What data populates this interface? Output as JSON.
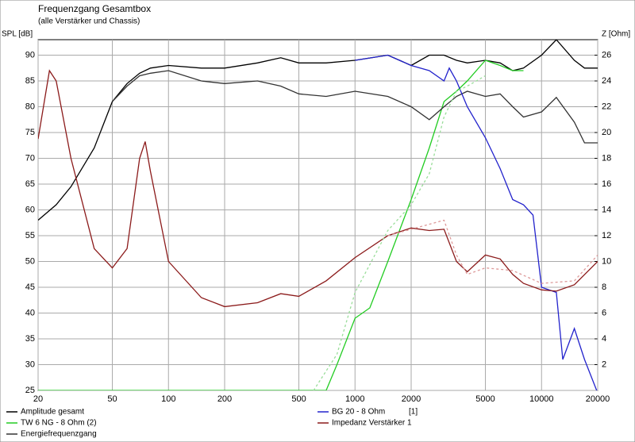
{
  "chart_data": {
    "type": "line",
    "title": "Frequenzgang Gesamtbox",
    "subtitle": "(alle Verstärker und Chassis)",
    "y_label": "SPL [dB]",
    "y2_label": "Z [Ohm]",
    "xscale": "log",
    "xlim": [
      20,
      20000
    ],
    "xticks": [
      20,
      50,
      100,
      200,
      500,
      1000,
      2000,
      5000,
      10000,
      20000
    ],
    "ylim": [
      25,
      93
    ],
    "yticks": [
      25,
      30,
      35,
      40,
      45,
      50,
      55,
      60,
      65,
      70,
      75,
      80,
      85,
      90
    ],
    "y2lim": [
      0,
      27.2
    ],
    "y2ticks": [
      2,
      4,
      6,
      8,
      10,
      12,
      14,
      16,
      18,
      20,
      22,
      24,
      26
    ],
    "grid": true,
    "series": [
      {
        "name": "Amplitude gesamt",
        "color": "#000000",
        "x": [
          20,
          25,
          30,
          40,
          50,
          60,
          70,
          80,
          100,
          150,
          200,
          300,
          400,
          500,
          700,
          1000,
          1500,
          2000,
          2500,
          3000,
          3500,
          4000,
          5000,
          6000,
          7000,
          8000,
          10000,
          12000,
          15000,
          17000,
          20000
        ],
        "values": [
          58,
          61,
          64.5,
          72,
          81,
          84.5,
          86.5,
          87.5,
          88,
          87.5,
          87.5,
          88.5,
          89.5,
          88.5,
          88.5,
          89,
          90,
          88,
          90,
          90,
          89,
          88.5,
          89,
          88.5,
          87,
          87.5,
          90,
          93,
          89,
          87.5,
          87.5
        ]
      },
      {
        "name": "TW 6 NG - 8 Ohm (2)",
        "color": "#22cc22",
        "x": [
          20,
          700,
          800,
          1000,
          1200,
          1500,
          2000,
          2500,
          3000,
          3500,
          4000,
          5000,
          6000,
          7000,
          8000
        ],
        "values": [
          25,
          25,
          30,
          39,
          41,
          50,
          62,
          72,
          81,
          83,
          85,
          89,
          88,
          87,
          87
        ]
      },
      {
        "name": "Energiefrequenzgang",
        "color": "#333333",
        "x": [
          50,
          60,
          70,
          80,
          100,
          150,
          200,
          300,
          400,
          500,
          700,
          1000,
          1500,
          2000,
          2500,
          3000,
          3500,
          4000,
          5000,
          6000,
          7000,
          8000,
          10000,
          12000,
          15000,
          17000,
          20000
        ],
        "values": [
          81,
          84,
          86,
          86.5,
          87,
          85,
          84.5,
          85,
          84,
          82.5,
          82,
          83,
          82,
          80,
          77.5,
          80,
          82,
          83,
          82,
          82.5,
          80,
          78,
          79,
          81.8,
          77,
          73,
          73
        ]
      },
      {
        "name": "BG 20 - 8 Ohm",
        "channel": "[1]",
        "color": "#2222cc",
        "x": [
          1000,
          1500,
          2000,
          2500,
          3000,
          3200,
          3500,
          4000,
          5000,
          6000,
          7000,
          8000,
          9000,
          10000,
          12000,
          13000,
          15000,
          17000,
          20000
        ],
        "values": [
          89,
          90,
          88,
          87,
          85,
          87.5,
          85,
          80,
          74,
          68,
          62,
          61,
          59,
          45,
          44,
          31,
          37,
          31,
          24.5
        ]
      },
      {
        "name": "Impedanz Verstärker 1",
        "color": "#8b1a1a",
        "axis": "y2",
        "x": [
          20,
          23,
          25,
          30,
          40,
          50,
          60,
          70,
          75,
          80,
          100,
          150,
          200,
          300,
          400,
          500,
          700,
          1000,
          1500,
          2000,
          2500,
          3000,
          3500,
          4000,
          5000,
          6000,
          7000,
          8000,
          10000,
          12000,
          15000,
          20000
        ],
        "values": [
          19.5,
          24.8,
          24,
          18,
          11,
          9.5,
          11,
          18,
          19.3,
          17,
          10,
          7.2,
          6.5,
          6.8,
          7.5,
          7.3,
          8.5,
          10.3,
          12,
          12.6,
          12.4,
          12.5,
          10,
          9.2,
          10.5,
          10.2,
          9,
          8.3,
          7.8,
          7.7,
          8.2,
          10
        ]
      },
      {
        "color": "#99dd99",
        "dashed": true,
        "x": [
          600,
          800,
          1000,
          1500,
          2000,
          2500,
          3000,
          3500,
          4000,
          5000
        ],
        "values": [
          25,
          32,
          44,
          56,
          61,
          67,
          78,
          83,
          84,
          86
        ]
      },
      {
        "color": "#dd9999",
        "dashed": true,
        "axis": "y2",
        "x": [
          1500,
          2000,
          3000,
          3500,
          4000,
          5000,
          7000,
          10000,
          15000,
          20000
        ],
        "values": [
          12,
          12.5,
          13.2,
          10.5,
          9,
          9.5,
          9.3,
          8.3,
          8.5,
          10.5
        ]
      }
    ]
  }
}
